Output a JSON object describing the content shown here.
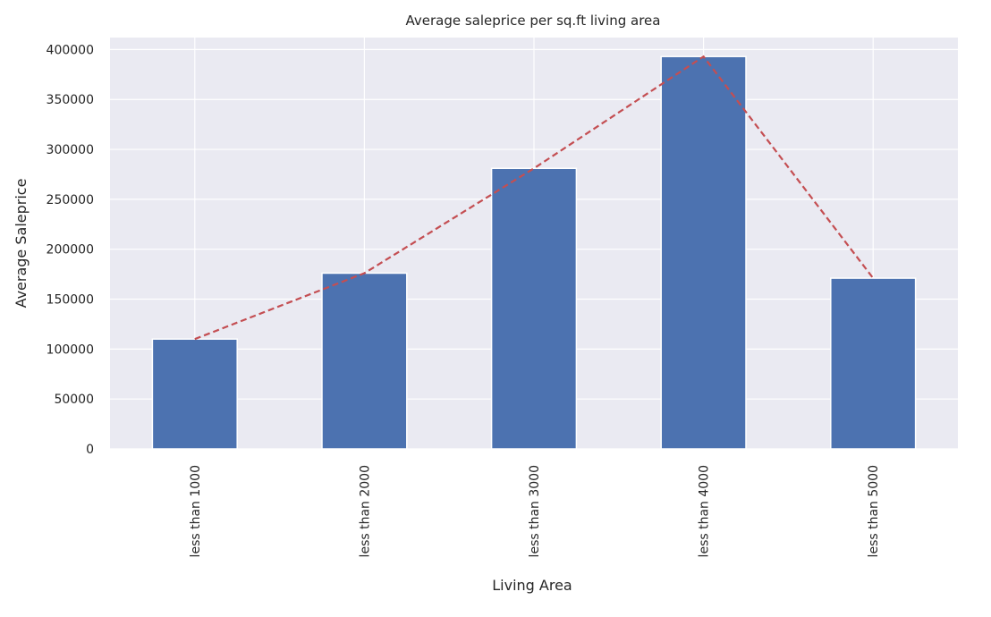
{
  "chart_data": {
    "type": "bar",
    "title": "Average saleprice per sq.ft living area",
    "xlabel": "Living Area",
    "ylabel": "Average Saleprice",
    "categories": [
      "less than 1000",
      "less than 2000",
      "less than 3000",
      "less than 4000",
      "less than 5000"
    ],
    "series": [
      {
        "type": "bar",
        "values": [
          110000,
          176000,
          281000,
          393000,
          171000
        ],
        "color": "#4c72b0"
      },
      {
        "type": "line",
        "style": "dashed",
        "values": [
          110000,
          176000,
          281000,
          393000,
          171000
        ],
        "color": "#c44e52"
      }
    ],
    "yticks": [
      0,
      50000,
      100000,
      150000,
      200000,
      250000,
      300000,
      350000,
      400000
    ],
    "ytick_labels": [
      "0",
      "50000",
      "100000",
      "150000",
      "200000",
      "250000",
      "300000",
      "350000",
      "400000"
    ],
    "ylim": [
      0,
      412000
    ],
    "grid": true,
    "background": "#eaeaf2"
  }
}
